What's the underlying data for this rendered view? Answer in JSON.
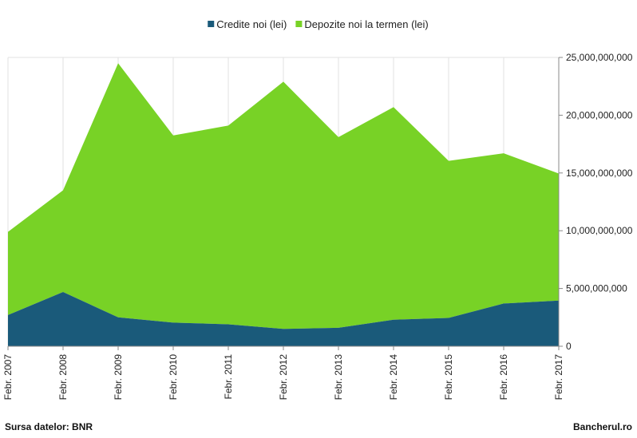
{
  "chart_data": {
    "type": "area",
    "stacked": true,
    "x": [
      "Febr. 2007",
      "Febr. 2008",
      "Febr. 2009",
      "Febr. 2010",
      "Febr. 2011",
      "Febr. 2012",
      "Febr. 2013",
      "Febr. 2014",
      "Febr. 2015",
      "Febr. 2016",
      "Febr. 2017"
    ],
    "series": [
      {
        "name": "Credite noi (lei)",
        "color": "#1a5a7a",
        "values": [
          2700000000,
          4700000000,
          2500000000,
          2050000000,
          1900000000,
          1500000000,
          1600000000,
          2300000000,
          2450000000,
          3700000000,
          3950000000
        ]
      },
      {
        "name": "Depozite noi la termen  (lei)",
        "color": "#78d226",
        "values": [
          7200000000,
          8800000000,
          22000000000,
          16200000000,
          17200000000,
          21400000000,
          16500000000,
          18400000000,
          13600000000,
          13000000000,
          11000000000
        ]
      }
    ],
    "ylim": [
      0,
      25000000000
    ],
    "yticks": [
      "0",
      "5,000,000,000",
      "10,000,000,000",
      "15,000,000,000",
      "20,000,000,000",
      "25,000,000,000"
    ],
    "grid": "vertical",
    "legend_position": "top-center",
    "y_axis_side": "right"
  },
  "footer": {
    "source": "Sursa datelor: BNR",
    "brand": "Bancherul.ro"
  }
}
